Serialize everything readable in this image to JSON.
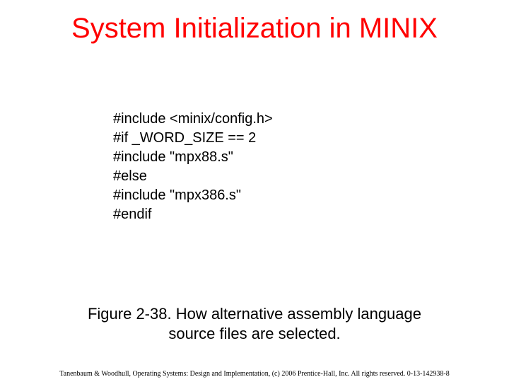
{
  "title": "System Initialization in MINIX",
  "code": {
    "lines": [
      "#include <minix/config.h>",
      "#if _WORD_SIZE == 2",
      "#include \"mpx88.s\"",
      "#else",
      "#include \"mpx386.s\"",
      "#endif"
    ]
  },
  "caption": {
    "line1": "Figure 2-38. How alternative assembly language",
    "line2": "source files are selected."
  },
  "footer": "Tanenbaum & Woodhull, Operating Systems: Design and Implementation, (c) 2006 Prentice-Hall, Inc. All rights reserved. 0-13-142938-8",
  "colors": {
    "title": "#ff0000",
    "text": "#000000",
    "background": "#ffffff"
  },
  "typography": {
    "title_fontsize": 40,
    "code_fontsize": 20,
    "caption_fontsize": 22,
    "footer_fontsize": 10
  }
}
